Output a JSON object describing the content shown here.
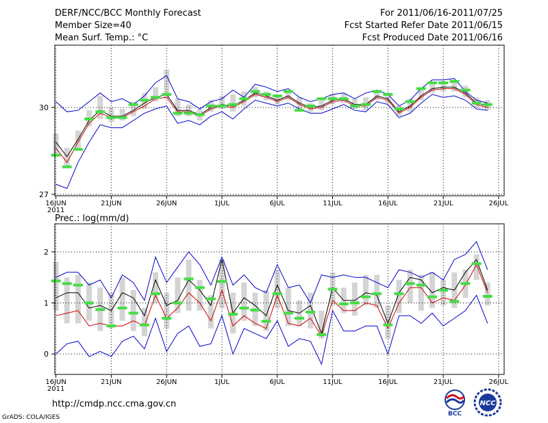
{
  "header": {
    "left": [
      "DERF/NCC/BCC Monthly Forecast",
      "Member Size=40",
      "Mean Surf. Temp.: °C"
    ],
    "right": [
      "For 2011/06/16-2011/07/25",
      "Fcst Started Refer Date 2011/06/15",
      "Fcst Produced Date 2011/06/16"
    ]
  },
  "footer": {
    "url": "http://cmdp.ncc.cma.gov.cn",
    "credit": "GrADS: COLA/IGES",
    "logo_left": "BCC",
    "logo_right": "NCC"
  },
  "colors": {
    "band": "#0000cc",
    "mean": "#000000",
    "median": "#cc0000",
    "box": "#d4d4d4",
    "obs": "#44dd44",
    "grid": "#000000"
  },
  "chart_data": [
    {
      "type": "line",
      "title": "Mean Surf. Temp.: °C",
      "x_ticks": [
        "16JUN",
        "21JUN",
        "26JUN",
        "1JUL",
        "6JUL",
        "11JUL",
        "16JUL",
        "21JUL",
        "26JUL"
      ],
      "x_tick_days": [
        1,
        6,
        11,
        16,
        21,
        26,
        31,
        36,
        41
      ],
      "x_sublabel": "2011",
      "yticks": [
        "27",
        "30"
      ],
      "ytick_values": [
        27,
        30
      ],
      "ylim": [
        26.95,
        32.15
      ],
      "days": [
        1,
        2,
        3,
        4,
        5,
        6,
        7,
        8,
        9,
        10,
        11,
        12,
        13,
        14,
        15,
        16,
        17,
        18,
        19,
        20,
        21,
        22,
        23,
        24,
        25,
        26,
        27,
        28,
        29,
        30,
        31,
        32,
        33,
        34,
        35,
        36,
        37,
        38,
        39,
        40
      ],
      "series": [
        {
          "name": "max",
          "values": [
            30.2,
            29.85,
            29.9,
            30.2,
            30.5,
            30.2,
            30.3,
            30.1,
            30.4,
            30.85,
            31.1,
            30.3,
            30.2,
            29.95,
            30.2,
            30.3,
            30.6,
            30.35,
            30.8,
            30.7,
            30.55,
            30.65,
            30.35,
            30.2,
            30.3,
            30.45,
            30.5,
            30.3,
            30.5,
            30.6,
            30.45,
            30.05,
            30.25,
            30.65,
            30.95,
            30.95,
            31.0,
            30.55,
            30.25,
            30.15
          ]
        },
        {
          "name": "min",
          "values": [
            27.35,
            27.2,
            28.1,
            28.8,
            29.4,
            29.3,
            29.3,
            29.55,
            29.8,
            29.95,
            30.05,
            29.45,
            29.55,
            29.4,
            29.7,
            29.85,
            29.6,
            29.95,
            30.25,
            30.15,
            30.05,
            30.15,
            29.95,
            29.8,
            29.8,
            29.95,
            30.1,
            29.9,
            29.85,
            30.2,
            30.1,
            29.65,
            29.8,
            30.15,
            30.45,
            30.35,
            30.4,
            30.25,
            29.95,
            29.9
          ]
        },
        {
          "name": "mean",
          "values": [
            28.8,
            28.3,
            28.9,
            29.55,
            29.9,
            29.7,
            29.7,
            29.9,
            30.15,
            30.35,
            30.45,
            29.9,
            29.9,
            29.75,
            30.0,
            30.1,
            30.05,
            30.25,
            30.5,
            30.4,
            30.25,
            30.4,
            30.15,
            30.0,
            30.05,
            30.25,
            30.3,
            30.1,
            30.1,
            30.4,
            30.3,
            29.85,
            30.05,
            30.4,
            30.65,
            30.7,
            30.7,
            30.5,
            30.15,
            30.05
          ]
        },
        {
          "name": "median",
          "values": [
            28.6,
            28.1,
            28.8,
            29.45,
            29.8,
            29.65,
            29.65,
            29.85,
            30.05,
            30.3,
            30.35,
            29.85,
            29.85,
            29.7,
            29.95,
            30.05,
            30.0,
            30.2,
            30.45,
            30.35,
            30.2,
            30.35,
            30.1,
            29.95,
            30.0,
            30.2,
            30.25,
            30.05,
            30.05,
            30.35,
            30.25,
            29.8,
            30.0,
            30.35,
            30.6,
            30.65,
            30.65,
            30.45,
            30.1,
            30.0
          ]
        },
        {
          "name": "box_low",
          "values": [
            28.3,
            27.9,
            28.6,
            29.35,
            29.6,
            29.5,
            29.55,
            29.7,
            29.95,
            30.2,
            30.3,
            29.7,
            29.7,
            29.55,
            29.85,
            29.95,
            29.85,
            30.05,
            30.35,
            30.25,
            30.1,
            30.25,
            29.95,
            29.85,
            29.9,
            30.1,
            30.15,
            29.95,
            29.9,
            30.25,
            30.15,
            29.7,
            29.85,
            30.25,
            30.5,
            30.55,
            30.55,
            30.35,
            30.0,
            29.9
          ]
        },
        {
          "name": "box_high",
          "values": [
            29.1,
            28.6,
            29.2,
            29.9,
            30.4,
            30.0,
            29.95,
            30.2,
            30.5,
            30.7,
            31.3,
            30.3,
            30.1,
            29.95,
            30.25,
            30.4,
            30.45,
            30.55,
            30.7,
            30.55,
            30.45,
            30.6,
            30.35,
            30.15,
            30.25,
            30.45,
            30.5,
            30.3,
            30.35,
            30.6,
            30.5,
            30.05,
            30.3,
            30.6,
            30.85,
            30.9,
            30.9,
            30.75,
            30.35,
            30.25
          ]
        },
        {
          "name": "observed",
          "values": [
            28.35,
            27.95,
            28.55,
            29.6,
            29.85,
            29.65,
            29.65,
            30.1,
            30.25,
            30.35,
            30.45,
            29.8,
            29.8,
            29.75,
            30.05,
            30.05,
            30.1,
            30.3,
            30.55,
            30.45,
            30.4,
            30.55,
            29.9,
            30.05,
            30.3,
            30.3,
            30.3,
            30.05,
            30.1,
            30.55,
            30.45,
            29.95,
            30.2,
            30.65,
            30.85,
            30.85,
            30.9,
            30.6,
            30.15,
            30.1
          ]
        }
      ]
    },
    {
      "type": "line",
      "title": "Prec.: log(mm/d)",
      "x_ticks": [
        "16JUN",
        "21JUN",
        "26JUN",
        "1JUL",
        "6JUL",
        "11JUL",
        "16JUL",
        "21JUL",
        "26JUL"
      ],
      "x_tick_days": [
        1,
        6,
        11,
        16,
        21,
        26,
        31,
        36,
        41
      ],
      "x_sublabel": "2011",
      "yticks": [
        "0",
        "1",
        "2"
      ],
      "ytick_values": [
        0,
        1,
        2
      ],
      "ylim": [
        -0.4,
        2.55
      ],
      "days": [
        1,
        2,
        3,
        4,
        5,
        6,
        7,
        8,
        9,
        10,
        11,
        12,
        13,
        14,
        15,
        16,
        17,
        18,
        19,
        20,
        21,
        22,
        23,
        24,
        25,
        26,
        27,
        28,
        29,
        30,
        31,
        32,
        33,
        34,
        35,
        36,
        37,
        38,
        39,
        40
      ],
      "series": [
        {
          "name": "max",
          "values": [
            1.5,
            1.6,
            1.6,
            1.35,
            1.45,
            1.1,
            1.55,
            1.4,
            1.05,
            1.9,
            1.4,
            1.7,
            2.0,
            1.75,
            1.35,
            1.9,
            1.35,
            1.55,
            1.3,
            1.2,
            1.75,
            1.3,
            1.35,
            1.0,
            1.55,
            1.5,
            1.55,
            1.5,
            1.5,
            1.4,
            1.3,
            1.65,
            1.6,
            1.5,
            1.6,
            1.45,
            1.85,
            1.95,
            2.2,
            1.65
          ]
        },
        {
          "name": "min",
          "values": [
            0.0,
            0.2,
            0.25,
            -0.05,
            0.05,
            -0.05,
            0.25,
            0.35,
            0.1,
            0.7,
            0.05,
            0.4,
            0.55,
            0.15,
            0.2,
            0.75,
            0.0,
            0.5,
            0.4,
            0.3,
            0.65,
            0.15,
            0.3,
            0.25,
            -0.2,
            0.85,
            0.45,
            0.45,
            0.55,
            0.55,
            0.0,
            0.75,
            0.75,
            0.6,
            0.8,
            0.55,
            0.7,
            0.85,
            1.15,
            0.6
          ]
        },
        {
          "name": "mean",
          "values": [
            1.1,
            1.2,
            1.2,
            0.9,
            0.95,
            0.85,
            1.2,
            1.1,
            0.75,
            1.45,
            0.95,
            1.05,
            1.45,
            1.25,
            0.95,
            1.85,
            0.8,
            1.1,
            0.95,
            0.75,
            1.35,
            0.85,
            0.8,
            0.95,
            0.4,
            1.3,
            1.05,
            1.05,
            1.2,
            1.15,
            0.6,
            1.2,
            1.5,
            1.45,
            1.2,
            1.3,
            1.25,
            1.6,
            1.85,
            1.25
          ]
        },
        {
          "name": "median",
          "values": [
            0.75,
            0.8,
            0.85,
            0.55,
            0.6,
            0.55,
            0.55,
            0.65,
            0.55,
            1.15,
            0.7,
            0.9,
            1.2,
            1.0,
            0.65,
            1.25,
            0.55,
            0.75,
            0.6,
            0.5,
            1.15,
            0.6,
            0.55,
            0.7,
            0.35,
            1.05,
            0.85,
            0.85,
            1.0,
            0.95,
            0.5,
            1.0,
            1.3,
            1.3,
            1.0,
            1.1,
            1.05,
            1.35,
            1.75,
            1.2
          ]
        },
        {
          "name": "box_low",
          "values": [
            0.85,
            0.6,
            0.6,
            0.65,
            0.45,
            0.5,
            0.65,
            0.45,
            0.35,
            1.0,
            0.5,
            0.8,
            0.85,
            0.85,
            0.5,
            0.9,
            0.4,
            0.65,
            0.55,
            0.45,
            0.9,
            0.55,
            0.55,
            0.5,
            0.3,
            0.95,
            0.8,
            0.75,
            0.95,
            0.9,
            0.3,
            0.8,
            1.0,
            0.85,
            0.9,
            0.95,
            0.9,
            1.1,
            1.45,
            0.95
          ]
        },
        {
          "name": "box_high",
          "values": [
            1.8,
            1.5,
            1.55,
            1.4,
            1.3,
            1.2,
            1.5,
            1.25,
            0.9,
            1.6,
            1.2,
            1.5,
            1.85,
            1.45,
            1.15,
            1.85,
            1.2,
            1.4,
            1.2,
            1.25,
            1.65,
            1.3,
            1.05,
            1.2,
            0.85,
            1.6,
            1.3,
            1.4,
            1.55,
            1.55,
            0.95,
            1.45,
            1.65,
            1.55,
            1.6,
            1.45,
            1.6,
            1.65,
            1.95,
            1.4
          ]
        },
        {
          "name": "observed",
          "values": [
            1.43,
            1.38,
            1.35,
            1.0,
            0.87,
            0.55,
            0.9,
            0.8,
            0.57,
            1.18,
            0.7,
            1.0,
            1.47,
            1.3,
            1.08,
            1.42,
            0.78,
            0.9,
            0.86,
            0.64,
            1.18,
            0.8,
            0.7,
            0.82,
            0.38,
            1.27,
            0.98,
            1.0,
            1.12,
            1.18,
            0.57,
            1.18,
            1.38,
            1.35,
            1.12,
            1.25,
            1.03,
            1.38,
            1.77,
            1.13
          ]
        }
      ]
    }
  ]
}
